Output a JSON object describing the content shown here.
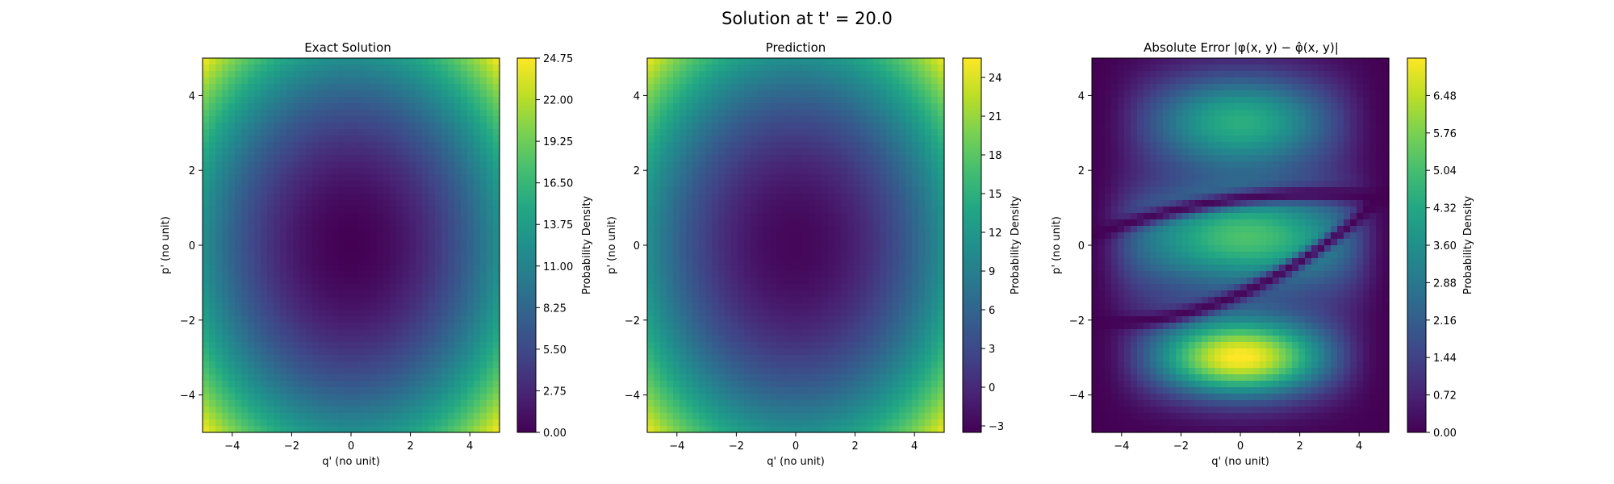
{
  "figure": {
    "suptitle": "Solution at t' = 20.0"
  },
  "chart_data": [
    {
      "type": "heatmap",
      "title": "Exact Solution",
      "xlabel": "q' (no unit)",
      "ylabel": "p' (no unit)",
      "xlim": [
        -5,
        5
      ],
      "ylim": [
        -5,
        5
      ],
      "x_ticks": [
        -4,
        -2,
        0,
        2,
        4
      ],
      "y_ticks": [
        -4,
        -2,
        0,
        2,
        4
      ],
      "colormap": "viridis",
      "colorbar": {
        "label": "Probability Density",
        "min": 0.0,
        "max": 24.75,
        "ticks": [
          "0.00",
          "2.75",
          "5.50",
          "8.25",
          "11.00",
          "13.75",
          "16.50",
          "19.25",
          "22.00",
          "24.75"
        ]
      },
      "field": {
        "kind": "quadratic_bowl",
        "center": [
          0,
          0
        ],
        "value_at_center": 0,
        "value_at_corners": 24.75
      }
    },
    {
      "type": "heatmap",
      "title": "Prediction",
      "xlabel": "q' (no unit)",
      "ylabel": "p' (no unit)",
      "xlim": [
        -5,
        5
      ],
      "ylim": [
        -5,
        5
      ],
      "x_ticks": [
        -4,
        -2,
        0,
        2,
        4
      ],
      "y_ticks": [
        -4,
        -2,
        0,
        2,
        4
      ],
      "colormap": "viridis",
      "colorbar": {
        "label": "Probability Density",
        "min": -3.5,
        "max": 25.5,
        "ticks": [
          "−3",
          "0",
          "3",
          "6",
          "9",
          "12",
          "15",
          "18",
          "21",
          "24"
        ]
      },
      "field": {
        "kind": "quadratic_bowl",
        "center": [
          0,
          0
        ],
        "value_at_center": -3,
        "value_at_corners": 25
      }
    },
    {
      "type": "heatmap",
      "title": "Absolute Error",
      "xlabel": "q' (no unit)",
      "ylabel": "p' (no unit)",
      "xlim": [
        -5,
        5
      ],
      "ylim": [
        -5,
        5
      ],
      "x_ticks": [
        -4,
        -2,
        0,
        2,
        4
      ],
      "y_ticks": [
        -4,
        -2,
        0,
        2,
        4
      ],
      "colormap": "viridis",
      "colorbar": {
        "label": "Probability Density",
        "min": 0.0,
        "max": 7.2,
        "ticks": [
          "0.00",
          "0.72",
          "1.44",
          "2.16",
          "2.88",
          "3.60",
          "4.32",
          "5.04",
          "5.76",
          "6.48"
        ]
      },
      "field": {
        "kind": "banded_error",
        "peak": 7.2,
        "peak_location": [
          0,
          -3
        ],
        "secondary_peak": 4.5,
        "secondary_location": [
          0,
          3.3
        ]
      }
    }
  ]
}
